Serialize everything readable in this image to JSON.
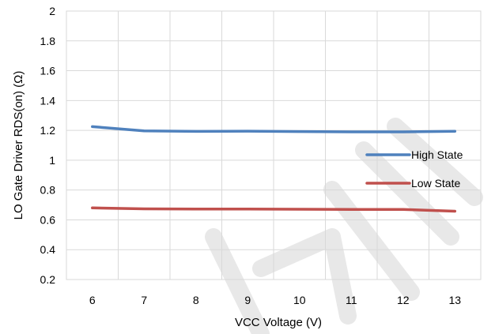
{
  "chart_data": {
    "type": "line",
    "xlabel": "VCC  Voltage (V)",
    "ylabel": "LO Gate Driver RDS(on) (Ω)",
    "xlim": [
      5.5,
      13.5
    ],
    "ylim": [
      0.2,
      2
    ],
    "x": [
      6,
      7,
      8,
      9,
      10,
      11,
      12,
      13
    ],
    "x_tick_labels": [
      "6",
      "7",
      "8",
      "9",
      "10",
      "11",
      "12",
      "13"
    ],
    "y_tick_labels": [
      "0.2",
      "0.4",
      "0.6",
      "0.8",
      "1",
      "1.2",
      "1.4",
      "1.6",
      "1.8",
      "2"
    ],
    "y_ticks": [
      0.2,
      0.4,
      0.6,
      0.8,
      1.0,
      1.2,
      1.4,
      1.6,
      1.8,
      2.0
    ],
    "grid": true,
    "legend_position": "right",
    "series": [
      {
        "name": "High State",
        "color": "#4f81bd",
        "values": [
          1.225,
          1.197,
          1.193,
          1.195,
          1.192,
          1.19,
          1.19,
          1.194
        ]
      },
      {
        "name": "Low State",
        "color": "#c0504d",
        "values": [
          0.68,
          0.674,
          0.672,
          0.673,
          0.671,
          0.67,
          0.67,
          0.658
        ]
      }
    ]
  }
}
